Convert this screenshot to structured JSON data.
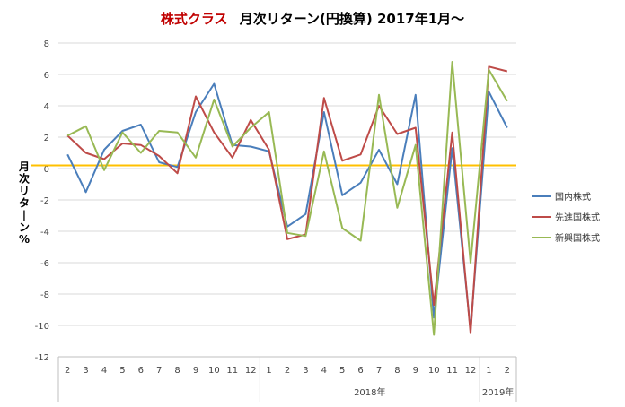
{
  "chart_data": {
    "type": "line",
    "title_highlight": "株式クラス",
    "title_rest": "月次リターン(円換算) 2017年1月～",
    "ylabel": "月次リターン%",
    "xlabel": "",
    "ylim": [
      -12,
      8
    ],
    "yticks": [
      8,
      6,
      4,
      2,
      0,
      -2,
      -4,
      -6,
      -8,
      -10,
      -12
    ],
    "grid": true,
    "legend_position": "right",
    "reference_line": {
      "value": 0.2,
      "color": "#ffc000"
    },
    "categories": [
      "2",
      "3",
      "4",
      "5",
      "6",
      "7",
      "8",
      "9",
      "10",
      "11",
      "12",
      "1",
      "2",
      "3",
      "4",
      "5",
      "6",
      "7",
      "8",
      "9",
      "10",
      "11",
      "12",
      "1",
      "2"
    ],
    "year_groups": [
      {
        "label": "",
        "start": 0,
        "end": 10
      },
      {
        "label": "2018年",
        "start": 11,
        "end": 22
      },
      {
        "label": "2019年",
        "start": 23,
        "end": 24
      }
    ],
    "series": [
      {
        "name": "国内株式",
        "color": "#4a7ebb",
        "values": [
          0.9,
          -1.5,
          1.2,
          2.4,
          2.8,
          0.4,
          0.1,
          3.6,
          5.4,
          1.5,
          1.4,
          1.1,
          -3.7,
          -2.9,
          3.6,
          -1.7,
          -0.9,
          1.2,
          -1.0,
          4.7,
          -9.5,
          1.3,
          -10.3,
          4.9,
          2.6
        ]
      },
      {
        "name": "先進国株式",
        "color": "#be4b48",
        "values": [
          2.1,
          1.0,
          0.6,
          1.6,
          1.5,
          0.8,
          -0.3,
          4.6,
          2.3,
          0.7,
          3.1,
          1.2,
          -4.5,
          -4.2,
          4.5,
          0.5,
          0.9,
          4.0,
          2.2,
          2.6,
          -8.7,
          2.3,
          -10.5,
          6.5,
          6.2
        ]
      },
      {
        "name": "新興国株式",
        "color": "#98b954",
        "values": [
          2.1,
          2.7,
          -0.1,
          2.3,
          1.0,
          2.4,
          2.3,
          0.7,
          4.4,
          1.4,
          2.6,
          3.6,
          -4.1,
          -4.3,
          1.1,
          -3.8,
          -4.6,
          4.7,
          -2.5,
          1.5,
          -10.6,
          6.8,
          -6.0,
          6.3,
          4.3
        ]
      }
    ]
  }
}
